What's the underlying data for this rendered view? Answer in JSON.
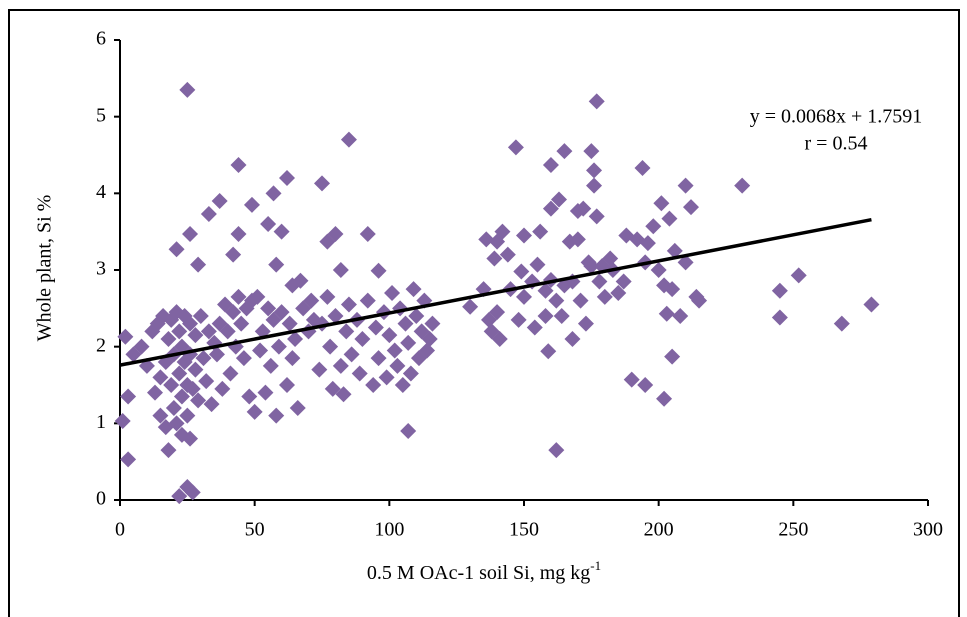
{
  "chart_data": {
    "type": "scatter",
    "xlabel": "0.5 M OAc-1 soil Si, mg kg",
    "xlabel_superscript": "-1",
    "ylabel": "Whole plant, Si %",
    "xlim": [
      0,
      300
    ],
    "xticks": [
      0,
      50,
      100,
      150,
      200,
      250,
      300
    ],
    "ylim": [
      0,
      6
    ],
    "yticks": [
      0,
      1,
      2,
      3,
      4,
      5,
      6
    ],
    "color": "#8064a2",
    "grid": false,
    "x": [
      25,
      177,
      85,
      147,
      44,
      165,
      175,
      194,
      231,
      75,
      62,
      57,
      37,
      33,
      49,
      26,
      21,
      29,
      42,
      44,
      55,
      60,
      80,
      92,
      77,
      82,
      96,
      58,
      64,
      71,
      67,
      107,
      162,
      3,
      1,
      3,
      2,
      22,
      25,
      27,
      23,
      26,
      245,
      252,
      245,
      268,
      279,
      215,
      214,
      210,
      212,
      201,
      204,
      198,
      202,
      190,
      195,
      205,
      208,
      203,
      206,
      210,
      200,
      202,
      205,
      176,
      176,
      177,
      172,
      170,
      167,
      160,
      163,
      160,
      156,
      155,
      158,
      160,
      162,
      158,
      159,
      154,
      164,
      168,
      173,
      178,
      180,
      183,
      185,
      187,
      188,
      192,
      195,
      196,
      182,
      175,
      165,
      150,
      149,
      145,
      140,
      138,
      137,
      136,
      139,
      140,
      142,
      144,
      141,
      130,
      150,
      153,
      148,
      135,
      168,
      171,
      174,
      170,
      179,
      5,
      8,
      10,
      12,
      13,
      14,
      15,
      15,
      16,
      17,
      17,
      18,
      18,
      19,
      19,
      20,
      20,
      21,
      21,
      22,
      22,
      23,
      23,
      24,
      24,
      25,
      25,
      26,
      26,
      27,
      28,
      28,
      29,
      30,
      31,
      32,
      33,
      34,
      35,
      36,
      37,
      38,
      39,
      40,
      41,
      42,
      43,
      44,
      45,
      46,
      47,
      48,
      49,
      50,
      51,
      52,
      53,
      54,
      55,
      56,
      57,
      58,
      59,
      60,
      62,
      63,
      64,
      65,
      66,
      68,
      70,
      72,
      74,
      75,
      77,
      78,
      79,
      80,
      82,
      83,
      84,
      85,
      86,
      88,
      89,
      90,
      92,
      94,
      95,
      96,
      98,
      99,
      100,
      101,
      102,
      103,
      104,
      105,
      106,
      107,
      108,
      109,
      110,
      111,
      112,
      113,
      114,
      115,
      116
    ],
    "values": [
      5.35,
      5.2,
      4.7,
      4.6,
      4.37,
      4.55,
      4.55,
      4.33,
      4.1,
      4.13,
      4.2,
      4.0,
      3.9,
      3.73,
      3.85,
      3.47,
      3.27,
      3.07,
      3.2,
      3.47,
      3.6,
      3.5,
      3.47,
      3.47,
      3.37,
      3.0,
      2.99,
      3.07,
      2.8,
      2.6,
      2.86,
      0.9,
      0.65,
      0.53,
      1.03,
      1.35,
      2.13,
      0.05,
      0.17,
      0.1,
      0.85,
      0.8,
      2.73,
      2.93,
      2.38,
      2.3,
      2.55,
      2.6,
      2.65,
      4.1,
      3.82,
      3.87,
      3.67,
      3.57,
      1.32,
      1.57,
      1.5,
      1.87,
      2.4,
      2.43,
      3.25,
      3.1,
      3.0,
      2.8,
      2.75,
      4.1,
      4.3,
      3.7,
      3.8,
      3.77,
      3.37,
      3.8,
      3.92,
      4.37,
      3.5,
      3.07,
      2.73,
      2.87,
      2.6,
      2.4,
      1.94,
      2.25,
      2.4,
      2.1,
      2.3,
      2.85,
      2.65,
      3.0,
      2.7,
      2.85,
      3.45,
      3.4,
      3.1,
      3.35,
      3.15,
      3.05,
      2.8,
      3.45,
      2.98,
      2.75,
      2.45,
      2.2,
      2.35,
      3.4,
      3.15,
      3.37,
      3.5,
      3.2,
      2.1,
      2.52,
      2.65,
      2.85,
      2.35,
      2.75,
      2.85,
      2.6,
      3.1,
      3.4,
      3.05,
      1.9,
      2.0,
      1.75,
      2.2,
      1.4,
      2.3,
      1.1,
      1.6,
      2.4,
      0.95,
      1.8,
      2.1,
      0.65,
      1.5,
      2.35,
      1.2,
      1.9,
      2.45,
      1.0,
      1.65,
      2.2,
      1.35,
      2.0,
      1.8,
      2.4,
      1.1,
      1.5,
      2.3,
      1.9,
      1.45,
      2.15,
      1.7,
      1.3,
      2.4,
      1.85,
      1.55,
      2.2,
      1.25,
      2.05,
      1.9,
      2.3,
      1.45,
      2.55,
      2.2,
      1.65,
      2.45,
      2.0,
      2.65,
      2.3,
      1.85,
      2.5,
      1.35,
      2.6,
      1.15,
      2.65,
      1.95,
      2.2,
      1.4,
      2.5,
      1.75,
      2.35,
      1.1,
      2.0,
      2.45,
      1.5,
      2.3,
      1.85,
      2.1,
      1.2,
      2.5,
      2.2,
      2.35,
      1.7,
      2.3,
      2.65,
      2.0,
      1.45,
      2.4,
      1.75,
      1.38,
      2.2,
      2.55,
      1.9,
      2.35,
      1.65,
      2.1,
      2.6,
      1.5,
      2.25,
      1.85,
      2.45,
      1.6,
      2.15,
      2.7,
      1.95,
      1.75,
      2.5,
      1.5,
      2.3,
      2.05,
      1.65,
      2.75,
      2.4,
      1.85,
      2.2,
      2.6,
      1.95,
      2.1,
      2.3
    ],
    "trendline": {
      "equation": "y = 0.0068x + 1.7591",
      "slope": 0.0068,
      "intercept": 1.7591,
      "correlation": "r = 0.54",
      "color": "#000000"
    }
  }
}
